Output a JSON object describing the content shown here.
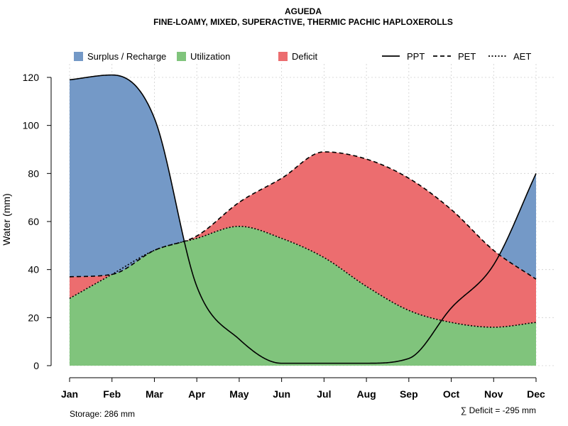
{
  "chart_data": {
    "type": "area",
    "title": "AGUEDA",
    "subtitle": "FINE-LOAMY, MIXED, SUPERACTIVE, THERMIC PACHIC HAPLOXEROLLS",
    "ylabel": "Water (mm)",
    "xlabel": "",
    "ylim": [
      0,
      125
    ],
    "yticks": [
      0,
      20,
      40,
      60,
      80,
      100,
      120
    ],
    "grid": true,
    "legend_position": "top",
    "categories": [
      "Jan",
      "Feb",
      "Mar",
      "Apr",
      "May",
      "Jun",
      "Jul",
      "Aug",
      "Sep",
      "Oct",
      "Nov",
      "Dec"
    ],
    "series": [
      {
        "name": "PPT",
        "style": "solid",
        "values": [
          119,
          121,
          103,
          33,
          11,
          1,
          1,
          1,
          3,
          24,
          42,
          80
        ]
      },
      {
        "name": "PET",
        "style": "dashed",
        "values": [
          37,
          38,
          48,
          54,
          68,
          78,
          89,
          86,
          78,
          65,
          48,
          36
        ]
      },
      {
        "name": "AET",
        "style": "dotted",
        "values": [
          28,
          38,
          48,
          53,
          58,
          53,
          45,
          33,
          23,
          18,
          16,
          18
        ]
      }
    ],
    "fills": [
      {
        "name": "Surplus / Recharge",
        "color": "#7499c7"
      },
      {
        "name": "Utilization",
        "color": "#80c47c"
      },
      {
        "name": "Deficit",
        "color": "#ec6d6f"
      }
    ],
    "line_legend": [
      "PPT",
      "PET",
      "AET"
    ],
    "footer_left": "Storage: 286 mm",
    "footer_right": "∑ Deficit = -295 mm"
  }
}
